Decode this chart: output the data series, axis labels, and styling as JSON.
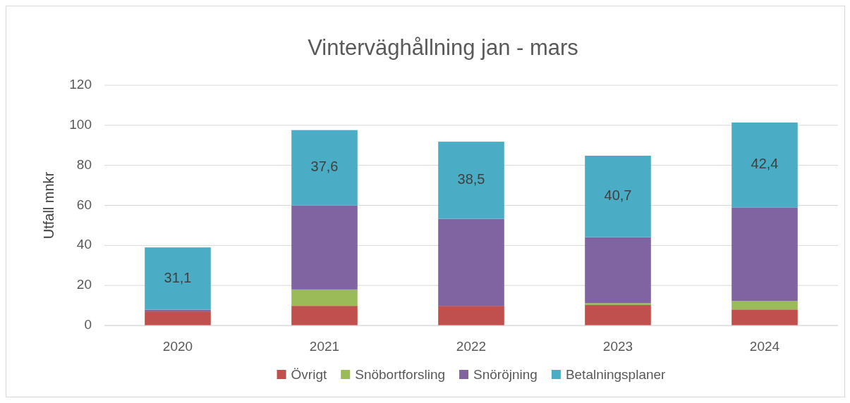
{
  "chart_data": {
    "type": "bar",
    "title": "Vinterväghållning jan - mars",
    "ylabel": "Utfall mnkr",
    "categories": [
      "2020",
      "2021",
      "2022",
      "2023",
      "2024"
    ],
    "stacked": true,
    "ylim": [
      0,
      120
    ],
    "yticks": [
      0,
      20,
      40,
      60,
      80,
      100,
      120
    ],
    "grid": "y",
    "legend": "bottom",
    "series": [
      {
        "name": "Övrigt",
        "color": "#c0504d",
        "values": [
          7,
          9.8,
          9.8,
          10.2,
          8
        ]
      },
      {
        "name": "Snöbortforsling",
        "color": "#9bbb59",
        "values": [
          0,
          8.2,
          0,
          1,
          4.2
        ]
      },
      {
        "name": "Snöröjning",
        "color": "#8064a2",
        "values": [
          0.9,
          42,
          43.5,
          32.9,
          46.8
        ]
      },
      {
        "name": "Betalningsplaner",
        "color": "#4bacc6",
        "values": [
          31.1,
          37.6,
          38.5,
          40.7,
          42.4
        ],
        "value_labels": [
          "31,1",
          "37,6",
          "38,5",
          "40,7",
          "42,4"
        ]
      }
    ]
  }
}
